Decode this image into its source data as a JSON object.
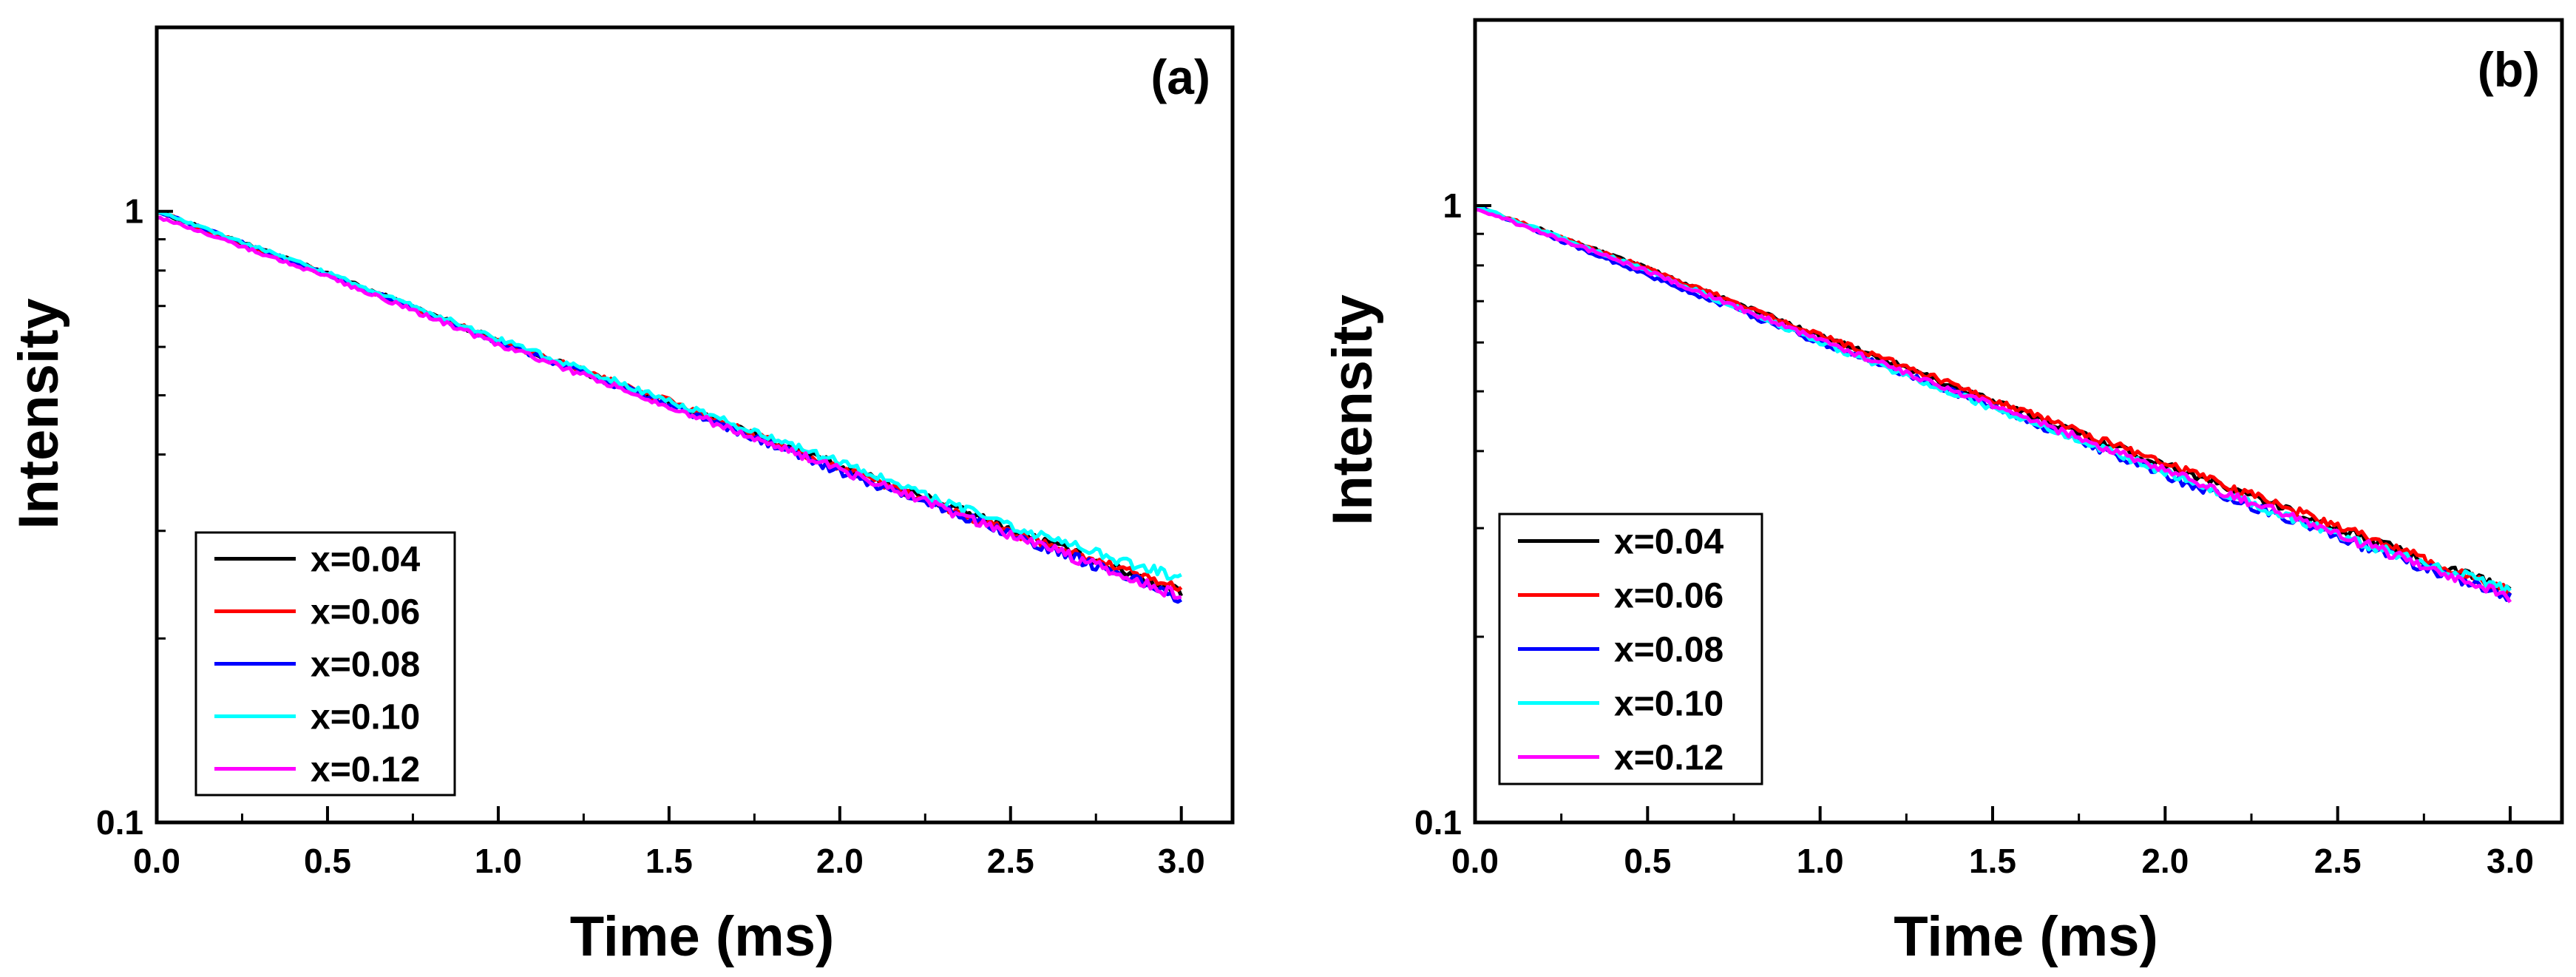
{
  "chart_data": [
    {
      "type": "line",
      "panel_label": "(a)",
      "title": "",
      "xlabel": "Time (ms)",
      "ylabel": "Intensity",
      "xlim": [
        0.0,
        3.15
      ],
      "ylim": [
        0.1,
        2.0
      ],
      "yscale": "log",
      "xticks": [
        0.0,
        0.5,
        1.0,
        1.5,
        2.0,
        2.5,
        3.0
      ],
      "xtick_labels": [
        "0.0",
        "0.5",
        "1.0",
        "1.5",
        "2.0",
        "2.5",
        "3.0"
      ],
      "yticks": [
        0.1,
        1
      ],
      "ytick_labels": [
        "0.1",
        "1"
      ],
      "legend_position": "bottom-left",
      "series": [
        {
          "name": "x=0.04",
          "color": "#000000",
          "x": [
            0.0,
            0.5,
            1.0,
            1.5,
            2.0,
            2.5,
            3.0
          ],
          "values": [
            1.0,
            0.79,
            0.615,
            0.485,
            0.383,
            0.302,
            0.238
          ]
        },
        {
          "name": "x=0.06",
          "color": "#ff0000",
          "x": [
            0.0,
            0.5,
            1.0,
            1.5,
            2.0,
            2.5,
            3.0
          ],
          "values": [
            1.0,
            0.788,
            0.614,
            0.488,
            0.38,
            0.299,
            0.24
          ]
        },
        {
          "name": "x=0.08",
          "color": "#0000ff",
          "x": [
            0.0,
            0.5,
            1.0,
            1.5,
            2.0,
            2.5,
            3.0
          ],
          "values": [
            1.0,
            0.789,
            0.612,
            0.483,
            0.375,
            0.297,
            0.233
          ]
        },
        {
          "name": "x=0.10",
          "color": "#00ffff",
          "x": [
            0.0,
            0.5,
            1.0,
            1.5,
            2.0,
            2.5,
            3.0
          ],
          "values": [
            1.0,
            0.792,
            0.618,
            0.49,
            0.388,
            0.305,
            0.25
          ]
        },
        {
          "name": "x=0.12",
          "color": "#ff00ff",
          "x": [
            0.0,
            0.5,
            1.0,
            1.5,
            2.0,
            2.5,
            3.0
          ],
          "values": [
            0.98,
            0.782,
            0.606,
            0.48,
            0.378,
            0.296,
            0.234
          ]
        }
      ]
    },
    {
      "type": "line",
      "panel_label": "(b)",
      "title": "",
      "xlabel": "Time (ms)",
      "ylabel": "Intensity",
      "xlim": [
        0.0,
        3.15
      ],
      "ylim": [
        0.1,
        2.0
      ],
      "yscale": "log",
      "xticks": [
        0.0,
        0.5,
        1.0,
        1.5,
        2.0,
        2.5,
        3.0
      ],
      "xtick_labels": [
        "0.0",
        "0.5",
        "1.0",
        "1.5",
        "2.0",
        "2.5",
        "3.0"
      ],
      "yticks": [
        0.1,
        1
      ],
      "ytick_labels": [
        "0.1",
        "1"
      ],
      "legend_position": "bottom-left",
      "series": [
        {
          "name": "x=0.04",
          "color": "#000000",
          "x": [
            0.0,
            0.5,
            1.0,
            1.5,
            2.0,
            2.5,
            3.0
          ],
          "values": [
            1.0,
            0.79,
            0.615,
            0.482,
            0.38,
            0.3,
            0.237
          ]
        },
        {
          "name": "x=0.06",
          "color": "#ff0000",
          "x": [
            0.0,
            0.5,
            1.0,
            1.5,
            2.0,
            2.5,
            3.0
          ],
          "values": [
            1.0,
            0.79,
            0.617,
            0.485,
            0.382,
            0.302,
            0.236
          ]
        },
        {
          "name": "x=0.08",
          "color": "#0000ff",
          "x": [
            0.0,
            0.5,
            1.0,
            1.5,
            2.0,
            2.5,
            3.0
          ],
          "values": [
            1.0,
            0.77,
            0.6,
            0.472,
            0.365,
            0.29,
            0.232
          ]
        },
        {
          "name": "x=0.10",
          "color": "#00ffff",
          "x": [
            0.0,
            0.5,
            1.0,
            1.5,
            2.0,
            2.5,
            3.0
          ],
          "values": [
            1.0,
            0.785,
            0.6,
            0.47,
            0.37,
            0.292,
            0.238
          ]
        },
        {
          "name": "x=0.12",
          "color": "#ff00ff",
          "x": [
            0.0,
            0.5,
            1.0,
            1.5,
            2.0,
            2.5,
            3.0
          ],
          "values": [
            0.99,
            0.782,
            0.605,
            0.475,
            0.372,
            0.293,
            0.232
          ]
        }
      ]
    }
  ]
}
